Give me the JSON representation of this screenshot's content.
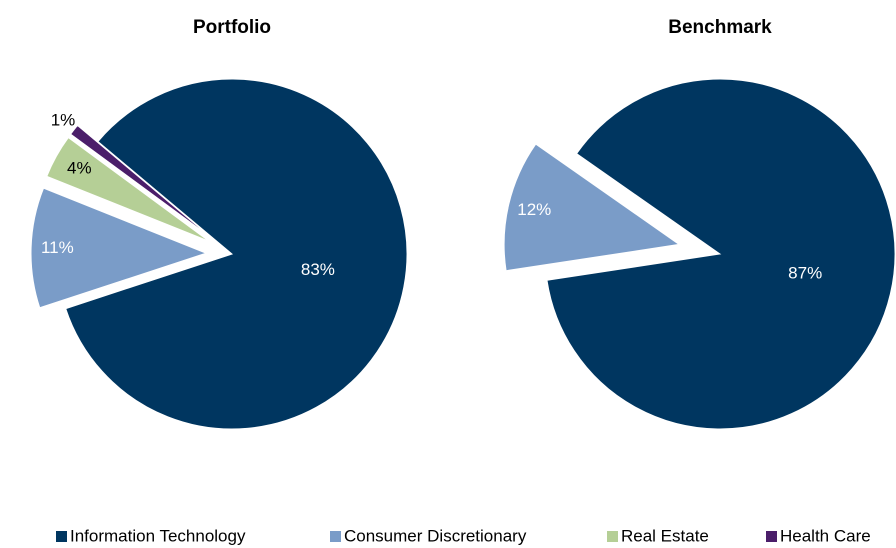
{
  "chart_data": [
    {
      "type": "pie",
      "title": "Portfolio",
      "categories": [
        "Information Technology",
        "Consumer Discretionary",
        "Real Estate",
        "Health Care"
      ],
      "values": [
        83,
        11,
        4,
        1
      ],
      "value_labels": [
        "83%",
        "11%",
        "4%",
        "1%"
      ],
      "colors": [
        "#003660",
        "#7a9cc8",
        "#b5cf96",
        "#4b1e6a"
      ]
    },
    {
      "type": "pie",
      "title": "Benchmark",
      "categories": [
        "Information Technology",
        "Consumer Discretionary"
      ],
      "values": [
        87,
        12
      ],
      "value_labels": [
        "87%",
        "12%"
      ],
      "colors": [
        "#003660",
        "#7a9cc8"
      ]
    }
  ]
}
